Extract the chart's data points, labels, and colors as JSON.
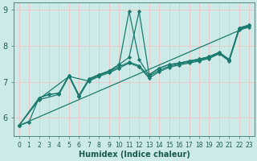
{
  "xlabel": "Humidex (Indice chaleur)",
  "bg_color": "#cceae8",
  "grid_color": "#b8d8d8",
  "line_color": "#1a7a6e",
  "xlim": [
    -0.5,
    23.5
  ],
  "ylim": [
    5.5,
    9.2
  ],
  "xticks": [
    0,
    1,
    2,
    3,
    4,
    5,
    6,
    7,
    8,
    9,
    10,
    11,
    12,
    13,
    14,
    15,
    16,
    17,
    18,
    19,
    20,
    21,
    22,
    23
  ],
  "yticks": [
    6,
    7,
    8,
    9
  ],
  "series": [
    {
      "x": [
        0,
        1,
        2,
        3,
        4,
        5,
        6,
        7,
        8,
        9,
        10,
        11,
        12,
        13,
        14,
        15,
        16,
        17,
        18,
        19,
        20,
        21,
        22,
        23
      ],
      "y": [
        5.78,
        5.88,
        6.55,
        6.65,
        6.68,
        7.18,
        6.62,
        7.08,
        7.2,
        7.3,
        7.48,
        8.96,
        7.62,
        7.18,
        7.38,
        7.48,
        7.52,
        7.58,
        7.63,
        7.7,
        7.82,
        7.62,
        8.5,
        8.58
      ],
      "has_marker": true
    },
    {
      "x": [
        0,
        2,
        3,
        4,
        5,
        6,
        7,
        8,
        9,
        10,
        11,
        12,
        13,
        14,
        15,
        16,
        17,
        18,
        19,
        20,
        21,
        22,
        23
      ],
      "y": [
        5.78,
        6.55,
        6.65,
        6.68,
        7.18,
        6.62,
        7.08,
        7.2,
        7.3,
        7.48,
        7.68,
        8.96,
        7.2,
        7.38,
        7.48,
        7.52,
        7.58,
        7.63,
        7.7,
        7.82,
        7.62,
        8.5,
        8.58
      ],
      "has_marker": true
    },
    {
      "x": [
        0,
        2,
        5,
        6,
        7,
        8,
        9,
        10,
        11,
        12,
        13,
        14,
        15,
        16,
        17,
        18,
        19,
        20,
        21,
        22,
        23
      ],
      "y": [
        5.78,
        6.52,
        7.15,
        6.58,
        7.05,
        7.18,
        7.28,
        7.42,
        7.55,
        7.45,
        7.15,
        7.32,
        7.43,
        7.5,
        7.55,
        7.6,
        7.68,
        7.8,
        7.6,
        8.48,
        8.55
      ],
      "has_marker": true
    },
    {
      "x": [
        0,
        2,
        4,
        5,
        7,
        8,
        9,
        10,
        11,
        12,
        13,
        14,
        15,
        16,
        17,
        18,
        19,
        20,
        21,
        22,
        23
      ],
      "y": [
        5.78,
        6.5,
        6.65,
        7.15,
        7.02,
        7.15,
        7.25,
        7.38,
        7.52,
        7.42,
        7.1,
        7.28,
        7.4,
        7.47,
        7.52,
        7.58,
        7.65,
        7.78,
        7.58,
        8.45,
        8.52
      ],
      "has_marker": true
    },
    {
      "x": [
        0,
        23
      ],
      "y": [
        5.78,
        8.55
      ],
      "has_marker": false
    }
  ]
}
